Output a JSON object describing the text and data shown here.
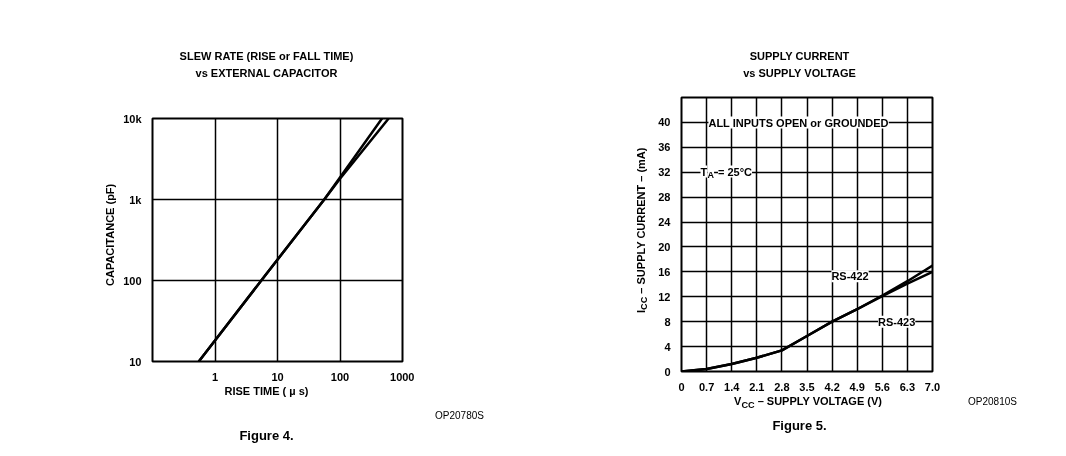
{
  "chart_data": [
    {
      "type": "line",
      "title": "SLEW RATE (RISE or FALL TIME)\nvs EXTERNAL CAPACITOR",
      "xlabel": "RISE TIME ( µ s)",
      "ylabel": "CAPACITANCE (pF)",
      "log": "xy",
      "xlim": [
        0.1,
        1000
      ],
      "ylim": [
        10,
        10000
      ],
      "xticks": [
        1,
        10,
        100,
        1000
      ],
      "yticks": [
        10,
        100,
        {
          "value": 1000,
          "label": "1k"
        },
        {
          "value": 10000,
          "label": "10k"
        }
      ],
      "grid": true,
      "marker": "none",
      "line_style": "solid",
      "series": [
        {
          "color": "#000000",
          "x": [
            0.55,
            5.5,
            56,
            470
          ],
          "values": [
            10,
            100,
            1000,
            10000
          ]
        },
        {
          "color": "#000000",
          "x": [
            0.55,
            5.5,
            56,
            100,
            600
          ],
          "values": [
            10,
            100,
            1000,
            1800,
            10000
          ]
        }
      ],
      "annotations": [
        "OP20780S",
        "Figure 4."
      ]
    },
    {
      "type": "line",
      "title": "SUPPLY CURRENT\nvs SUPPLY VOLTAGE",
      "xlabel": "V$_{CC}$ – SUPPLY VOLTAGE (V)",
      "ylabel": "I$_{CC}$ – SUPPLY CURRENT – (mA)",
      "xlim": [
        0,
        7
      ],
      "ylim": [
        0,
        44
      ],
      "xticks": [
        0,
        0.7,
        1.4,
        2.1,
        2.8,
        3.5,
        4.2,
        4.9,
        5.6,
        6.3,
        {
          "value": 7,
          "label": "7.0"
        }
      ],
      "yticks": [
        0,
        4,
        8,
        12,
        16,
        20,
        24,
        28,
        32,
        36,
        40
      ],
      "grid": true,
      "marker": "none",
      "line_style": "solid",
      "x": [
        0,
        0.7,
        1.4,
        2.1,
        2.8,
        3.5,
        4.2,
        4.9,
        5.6,
        6.3,
        7.0
      ],
      "series": [
        {
          "color": "#000000",
          "values": [
            0,
            0.4,
            1.2,
            2.2,
            3.4,
            5.7,
            8,
            10,
            12.2,
            14.5,
            17
          ]
        },
        {
          "color": "#000000",
          "values": [
            0,
            0.4,
            1.2,
            2.2,
            3.4,
            5.7,
            8,
            10,
            12.1,
            14.1,
            16
          ]
        }
      ],
      "annotations": [
        "ALL INPUTS OPEN or GROUNDED",
        "T$_{A}$ = 25°C",
        "OP20810S",
        "Figure 5.",
        {
          "text": "RS-422",
          "x": 4.7,
          "y": 15.3
        },
        {
          "text": "RS-423",
          "x": 6.0,
          "y": 8
        }
      ]
    }
  ]
}
